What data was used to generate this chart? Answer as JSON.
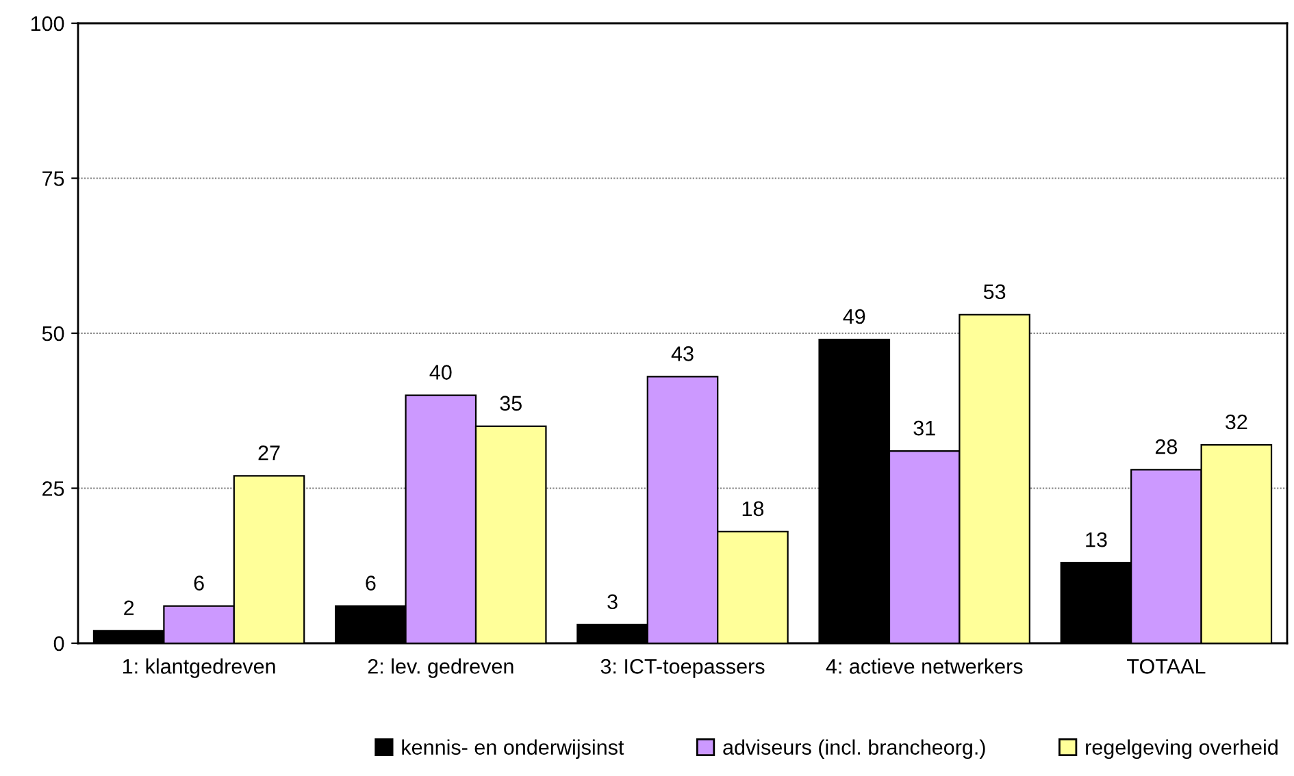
{
  "chart_data": {
    "type": "bar",
    "categories": [
      "1: klantgedreven",
      "2: lev. gedreven",
      "3: ICT-toepassers",
      "4: actieve netwerkers",
      "TOTAAL"
    ],
    "series": [
      {
        "name": "kennis- en onderwijsinst",
        "color": "#000000",
        "values": [
          2,
          6,
          3,
          49,
          13
        ]
      },
      {
        "name": "adviseurs (incl. brancheorg.)",
        "color": "#cc99ff",
        "values": [
          6,
          40,
          43,
          31,
          28
        ]
      },
      {
        "name": "regelgeving overheid",
        "color": "#ffff99",
        "values": [
          27,
          35,
          18,
          53,
          32
        ]
      }
    ],
    "ylim": [
      0,
      100
    ],
    "yticks": [
      0,
      25,
      50,
      75,
      100
    ],
    "grid": "y",
    "legend": "bottom",
    "data_labels": true
  }
}
